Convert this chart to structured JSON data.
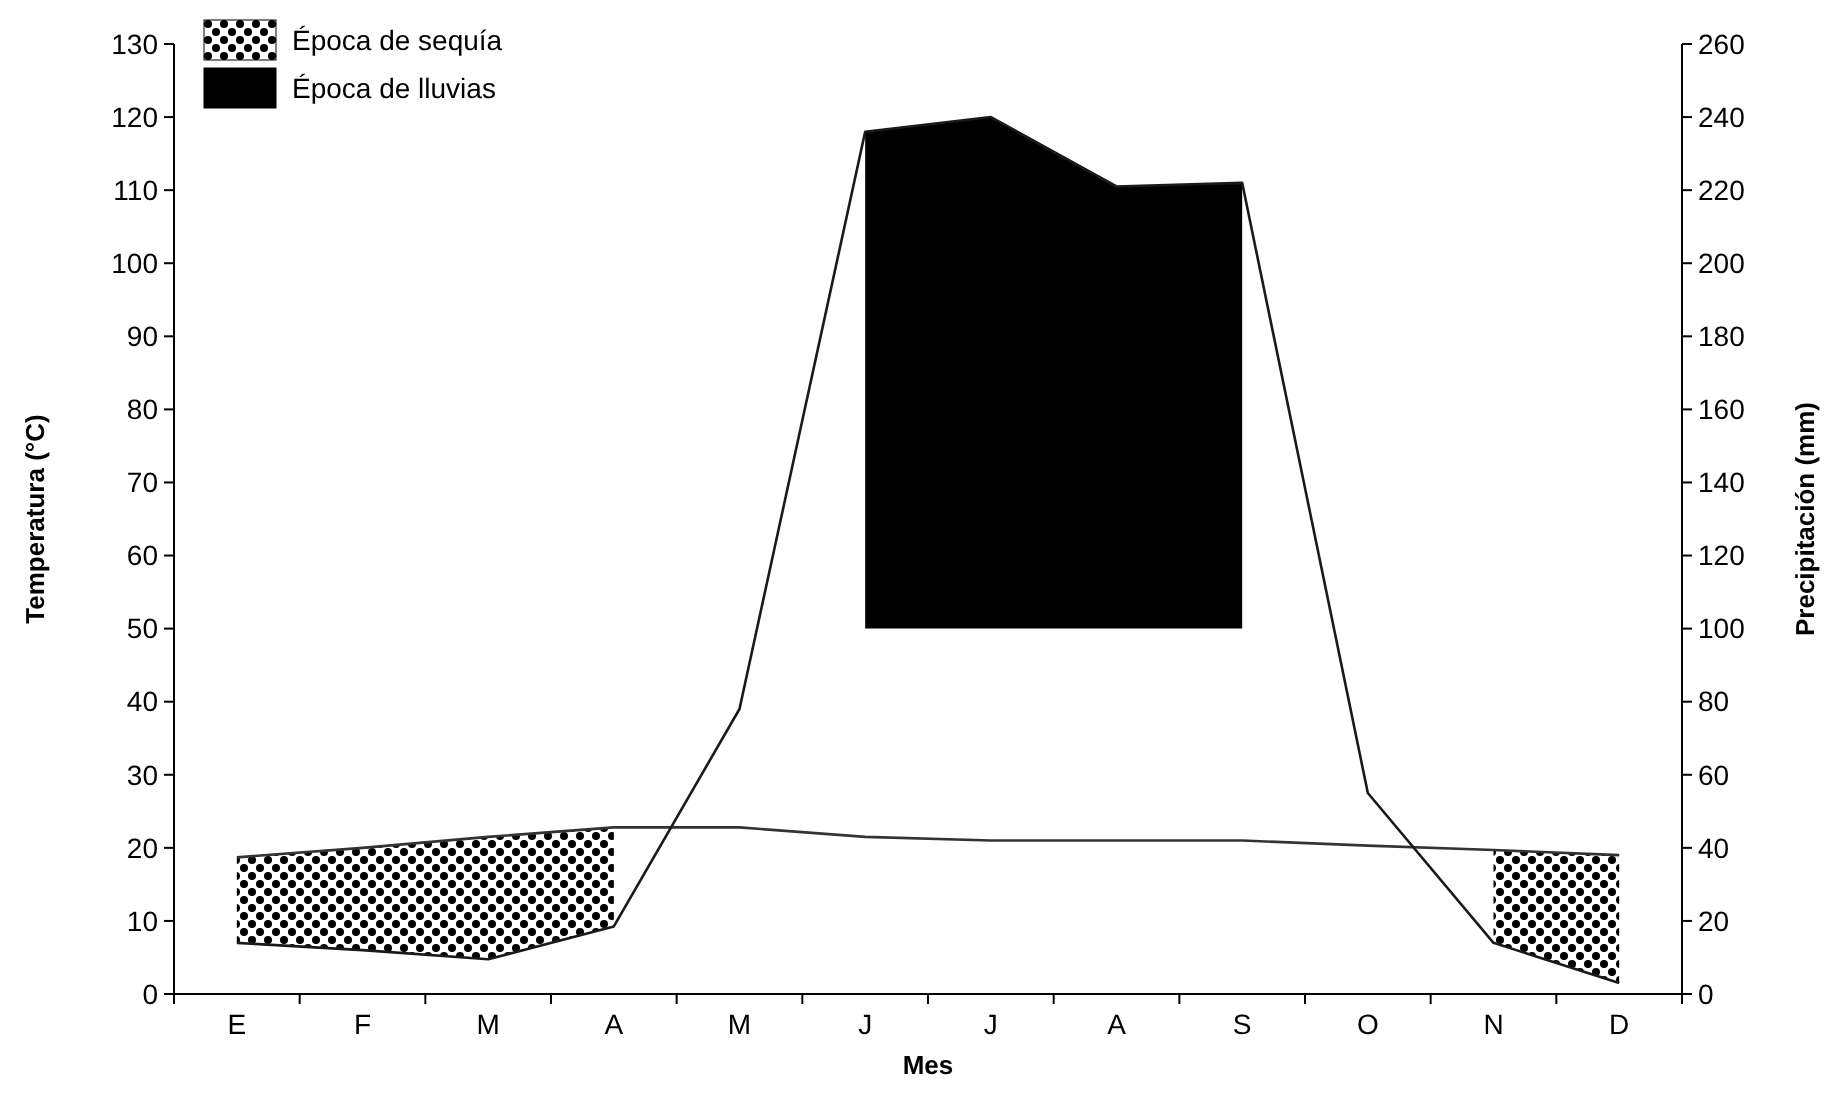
{
  "chart_data": {
    "type": "line",
    "xlabel": "Mes",
    "ylabel": "Temperatura (°C)",
    "y2label": "Precipitación (mm)",
    "categories": [
      "E",
      "F",
      "M",
      "A",
      "M",
      "J",
      "J",
      "A",
      "S",
      "O",
      "N",
      "D"
    ],
    "ylim": [
      0,
      130
    ],
    "yticks": [
      0,
      10,
      20,
      30,
      40,
      50,
      60,
      70,
      80,
      90,
      100,
      110,
      120,
      130
    ],
    "y2lim": [
      0,
      260
    ],
    "y2ticks": [
      0,
      20,
      40,
      60,
      80,
      100,
      120,
      140,
      160,
      180,
      200,
      220,
      240,
      260
    ],
    "grid": false,
    "legend": "top left",
    "marker": "none",
    "line_style": "solid",
    "series": [
      {
        "axis": "y",
        "color": "#333333",
        "values": [
          18.7,
          20,
          21.5,
          22.8,
          22.8,
          21.5,
          21,
          21,
          21,
          20.3,
          19.7,
          19
        ]
      },
      {
        "axis": "y2",
        "color": "#1a1a1a",
        "values": [
          14,
          12,
          9.5,
          18.5,
          78,
          236,
          240,
          221,
          222,
          55,
          14,
          3
        ]
      },
      {
        "name": "Época de sequía",
        "axis": "y2",
        "color": "#000000",
        "values": [
          null,
          null,
          null,
          null,
          null,
          null,
          null,
          null,
          null,
          null,
          null,
          null
        ],
        "upper": [
          37.4,
          40,
          43,
          45.6,
          null,
          null,
          null,
          null,
          null,
          null,
          39.4,
          38
        ],
        "lower": [
          14,
          12,
          9.5,
          18.5,
          null,
          null,
          null,
          null,
          null,
          null,
          14,
          3
        ]
      },
      {
        "name": "Época de lluvias",
        "axis": "y2",
        "color": "#000000",
        "values": [
          null,
          null,
          null,
          null,
          null,
          null,
          null,
          null,
          null,
          null,
          null,
          null
        ],
        "upper": [
          null,
          null,
          null,
          null,
          null,
          236,
          240,
          221,
          222,
          null,
          null,
          null
        ],
        "lower": [
          null,
          null,
          null,
          null,
          null,
          100,
          100,
          100,
          100,
          null,
          null,
          null
        ]
      }
    ]
  }
}
